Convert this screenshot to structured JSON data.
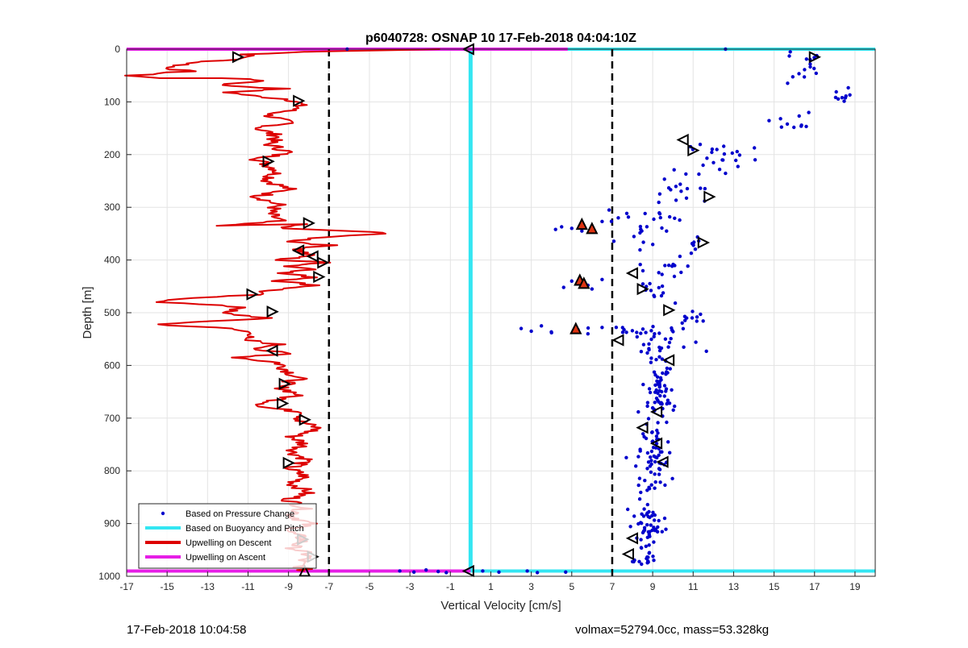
{
  "chart_data": {
    "type": "scatter",
    "title": "p6040728: OSNAP 10 17-Feb-2018 04:04:10Z",
    "xlabel": "Vertical Velocity [cm/s]",
    "ylabel": "Depth [m]",
    "xlim": [
      -17,
      20
    ],
    "ylim": [
      0,
      1000
    ],
    "y_reversed": true,
    "grid": true,
    "x_ticks": [
      -17,
      -15,
      -13,
      -11,
      -9,
      -7,
      -5,
      -3,
      -1,
      1,
      3,
      5,
      7,
      9,
      11,
      13,
      15,
      17,
      19
    ],
    "y_ticks": [
      0,
      100,
      200,
      300,
      400,
      500,
      600,
      700,
      800,
      900,
      1000
    ],
    "legend_position": "bottom-left",
    "legend": [
      {
        "label": "Based on Pressure Change",
        "color": "#0000cc",
        "style": "dot"
      },
      {
        "label": "Based on Buoyancy and Pitch",
        "color": "#33e6f2",
        "style": "line"
      },
      {
        "label": "Upwelling on Descent",
        "color": "#dd0000",
        "style": "line"
      },
      {
        "label": "Upwelling on Ascent",
        "color": "#e61ee6",
        "style": "line"
      }
    ],
    "threshold_lines_x": [
      -7,
      7
    ],
    "descent_upwelling_profile": [
      [
        -1.5,
        0
      ],
      [
        -8,
        5
      ],
      [
        -11,
        10
      ],
      [
        -11.2,
        18
      ],
      [
        -13.5,
        25
      ],
      [
        -15,
        35
      ],
      [
        -14,
        42
      ],
      [
        -16.8,
        50
      ],
      [
        -15.5,
        55
      ],
      [
        -12,
        55
      ],
      [
        -10,
        60
      ],
      [
        -12.5,
        68
      ],
      [
        -9.3,
        75
      ],
      [
        -12,
        82
      ],
      [
        -10.5,
        90
      ],
      [
        -9,
        95
      ],
      [
        -8.5,
        100
      ],
      [
        -8.5,
        112
      ],
      [
        -10,
        125
      ],
      [
        -9,
        140
      ],
      [
        -10.5,
        150
      ],
      [
        -9.5,
        165
      ],
      [
        -10,
        180
      ],
      [
        -9,
        195
      ],
      [
        -10.5,
        210
      ],
      [
        -9.5,
        230
      ],
      [
        -10,
        250
      ],
      [
        -9,
        265
      ],
      [
        -10.5,
        280
      ],
      [
        -9.5,
        295
      ],
      [
        -10,
        310
      ],
      [
        -9.5,
        325
      ],
      [
        -12.5,
        335
      ],
      [
        -8.5,
        332
      ],
      [
        -9.5,
        340
      ],
      [
        -6,
        345
      ],
      [
        -3.8,
        350
      ],
      [
        -7,
        355
      ],
      [
        -8.8,
        365
      ],
      [
        -7,
        372
      ],
      [
        -8.5,
        380
      ],
      [
        -8,
        392
      ],
      [
        -9.5,
        400
      ],
      [
        -7,
        405
      ],
      [
        -9,
        412
      ],
      [
        -7.5,
        418
      ],
      [
        -9.5,
        425
      ],
      [
        -7.5,
        433
      ],
      [
        -9.5,
        440
      ],
      [
        -7.5,
        448
      ],
      [
        -10,
        458
      ],
      [
        -10.8,
        466
      ],
      [
        -14,
        472
      ],
      [
        -15.2,
        480
      ],
      [
        -11,
        490
      ],
      [
        -12.5,
        500
      ],
      [
        -10,
        510
      ],
      [
        -15.5,
        522
      ],
      [
        -12,
        530
      ],
      [
        -10.5,
        540
      ],
      [
        -11.5,
        550
      ],
      [
        -9.5,
        560
      ],
      [
        -10.5,
        570
      ],
      [
        -9,
        578
      ],
      [
        -11.5,
        585
      ],
      [
        -9.5,
        595
      ],
      [
        -9,
        610
      ],
      [
        -8.5,
        625
      ],
      [
        -9.5,
        640
      ],
      [
        -8.5,
        655
      ],
      [
        -9.5,
        665
      ],
      [
        -10.5,
        678
      ],
      [
        -8,
        690
      ],
      [
        -8.5,
        705
      ],
      [
        -7.5,
        720
      ],
      [
        -8.8,
        735
      ],
      [
        -8.2,
        750
      ],
      [
        -8.8,
        765
      ],
      [
        -8,
        780
      ],
      [
        -9,
        795
      ],
      [
        -8.2,
        810
      ],
      [
        -8.8,
        825
      ],
      [
        -8,
        840
      ],
      [
        -9,
        855
      ],
      [
        -8.2,
        870
      ],
      [
        -8.8,
        885
      ],
      [
        -8,
        900
      ],
      [
        -9,
        915
      ],
      [
        -8.2,
        930
      ],
      [
        -8.8,
        945
      ],
      [
        -8,
        960
      ],
      [
        -8.5,
        975
      ],
      [
        -8.2,
        990
      ]
    ],
    "pressure_change_clusters": [
      {
        "x": 16.5,
        "y": 40,
        "sx": 1.0,
        "sy": 30,
        "n": 14
      },
      {
        "x": 18.4,
        "y": 85,
        "sx": 0.6,
        "sy": 18,
        "n": 9
      },
      {
        "x": 15.5,
        "y": 135,
        "sx": 1.5,
        "sy": 25,
        "n": 10
      },
      {
        "x": 12.5,
        "y": 200,
        "sx": 2.0,
        "sy": 35,
        "n": 22
      },
      {
        "x": 10.5,
        "y": 260,
        "sx": 1.8,
        "sy": 30,
        "n": 16
      },
      {
        "x": 9.0,
        "y": 310,
        "sx": 1.5,
        "sy": 20,
        "n": 10
      },
      {
        "x": 8.5,
        "y": 340,
        "sx": 1.8,
        "sy": 25,
        "n": 14
      },
      {
        "x": 11.0,
        "y": 370,
        "sx": 1.0,
        "sy": 20,
        "n": 8
      },
      {
        "x": 9.5,
        "y": 410,
        "sx": 1.5,
        "sy": 30,
        "n": 14
      },
      {
        "x": 8.8,
        "y": 460,
        "sx": 1.5,
        "sy": 25,
        "n": 12
      },
      {
        "x": 11.0,
        "y": 510,
        "sx": 1.0,
        "sy": 15,
        "n": 10
      },
      {
        "x": 8.0,
        "y": 535,
        "sx": 3.0,
        "sy": 12,
        "n": 24
      },
      {
        "x": 9.5,
        "y": 570,
        "sx": 1.5,
        "sy": 20,
        "n": 20
      },
      {
        "x": 9.3,
        "y": 660,
        "sx": 0.8,
        "sy": 60,
        "n": 60
      },
      {
        "x": 9.0,
        "y": 780,
        "sx": 0.8,
        "sy": 60,
        "n": 60
      },
      {
        "x": 8.8,
        "y": 900,
        "sx": 0.7,
        "sy": 50,
        "n": 50
      },
      {
        "x": 8.5,
        "y": 970,
        "sx": 0.6,
        "sy": 15,
        "n": 14
      }
    ],
    "pressure_change_outliers": [
      {
        "x": 4.5,
        "y": 337
      },
      {
        "x": 5.0,
        "y": 340
      },
      {
        "x": 4.2,
        "y": 342
      },
      {
        "x": 6.5,
        "y": 327
      },
      {
        "x": 7.3,
        "y": 320
      },
      {
        "x": 5.5,
        "y": 345
      },
      {
        "x": 5.0,
        "y": 440
      },
      {
        "x": 5.8,
        "y": 448
      },
      {
        "x": 4.6,
        "y": 452
      },
      {
        "x": 6.5,
        "y": 437
      },
      {
        "x": 6.0,
        "y": 455
      },
      {
        "x": 2.5,
        "y": 530
      },
      {
        "x": 3.5,
        "y": 525
      },
      {
        "x": 4.0,
        "y": 538
      },
      {
        "x": 3.0,
        "y": 535
      },
      {
        "x": 6.5,
        "y": 528
      },
      {
        "x": 5.8,
        "y": 540
      },
      {
        "x": -6.1,
        "y": 0
      },
      {
        "x": 12.6,
        "y": 0
      },
      {
        "x": 15.8,
        "y": 5
      },
      {
        "x": -3.5,
        "y": 990
      },
      {
        "x": -2.8,
        "y": 992
      },
      {
        "x": -2.2,
        "y": 988
      },
      {
        "x": -1.6,
        "y": 991
      },
      {
        "x": -1.2,
        "y": 993
      },
      {
        "x": 0.6,
        "y": 990
      },
      {
        "x": 1.4,
        "y": 992
      },
      {
        "x": 2.8,
        "y": 990
      },
      {
        "x": 3.3,
        "y": 993
      },
      {
        "x": 4.7,
        "y": 992
      }
    ],
    "buoyancy_pitch_velocity": [
      [
        0,
        0
      ],
      [
        0,
        992
      ]
    ],
    "surface_line": {
      "depth": 0,
      "x_from": -17,
      "x_to": 20,
      "magenta_to": 4.8
    },
    "bottom_line": {
      "depth": 990,
      "x_from": -17,
      "x_to": 20,
      "magenta_to": 0
    },
    "marker_points": [
      {
        "x": -11.5,
        "y": 15,
        "dir": "right"
      },
      {
        "x": 17.0,
        "y": 15,
        "dir": "right"
      },
      {
        "x": -8.5,
        "y": 98,
        "dir": "right"
      },
      {
        "x": 10.5,
        "y": 172,
        "dir": "left"
      },
      {
        "x": 11.0,
        "y": 192,
        "dir": "right"
      },
      {
        "x": -10.0,
        "y": 213,
        "dir": "right"
      },
      {
        "x": 11.8,
        "y": 280,
        "dir": "right"
      },
      {
        "x": -8.0,
        "y": 330,
        "dir": "right"
      },
      {
        "x": 5.5,
        "y": 332,
        "dir": "up",
        "filled": true
      },
      {
        "x": 6.0,
        "y": 340,
        "dir": "up",
        "filled": true
      },
      {
        "x": 11.5,
        "y": 367,
        "dir": "right"
      },
      {
        "x": -8.5,
        "y": 382,
        "dir": "left"
      },
      {
        "x": -7.8,
        "y": 393,
        "dir": "left"
      },
      {
        "x": -7.3,
        "y": 405,
        "dir": "right"
      },
      {
        "x": 8.0,
        "y": 425,
        "dir": "left"
      },
      {
        "x": -7.5,
        "y": 432,
        "dir": "right"
      },
      {
        "x": 5.4,
        "y": 438,
        "dir": "up",
        "filled": true
      },
      {
        "x": 5.6,
        "y": 444,
        "dir": "up",
        "filled": true
      },
      {
        "x": 8.5,
        "y": 455,
        "dir": "right"
      },
      {
        "x": -10.8,
        "y": 465,
        "dir": "right"
      },
      {
        "x": 9.8,
        "y": 495,
        "dir": "right"
      },
      {
        "x": -9.8,
        "y": 498,
        "dir": "right"
      },
      {
        "x": 5.2,
        "y": 530,
        "dir": "up",
        "filled": true
      },
      {
        "x": 7.3,
        "y": 552,
        "dir": "left"
      },
      {
        "x": -9.8,
        "y": 572,
        "dir": "left"
      },
      {
        "x": 9.8,
        "y": 590,
        "dir": "left"
      },
      {
        "x": -9.2,
        "y": 635,
        "dir": "right"
      },
      {
        "x": -9.3,
        "y": 672,
        "dir": "right"
      },
      {
        "x": 9.2,
        "y": 688,
        "dir": "left"
      },
      {
        "x": -8.2,
        "y": 703,
        "dir": "right"
      },
      {
        "x": 8.5,
        "y": 718,
        "dir": "left"
      },
      {
        "x": 9.2,
        "y": 748,
        "dir": "left"
      },
      {
        "x": 9.5,
        "y": 783,
        "dir": "left"
      },
      {
        "x": -9.0,
        "y": 785,
        "dir": "right"
      },
      {
        "x": 8.0,
        "y": 928,
        "dir": "left"
      },
      {
        "x": -8.3,
        "y": 930,
        "dir": "right"
      },
      {
        "x": 7.8,
        "y": 958,
        "dir": "left"
      },
      {
        "x": -7.8,
        "y": 963,
        "dir": "right"
      },
      {
        "x": -8.2,
        "y": 990,
        "dir": "up"
      },
      {
        "x": -0.1,
        "y": 0,
        "dir": "left"
      },
      {
        "x": -0.1,
        "y": 990,
        "dir": "left"
      }
    ]
  },
  "footer": {
    "left": "17-Feb-2018 10:04:58",
    "right": "volmax=52794.0cc, mass=53.328kg"
  }
}
